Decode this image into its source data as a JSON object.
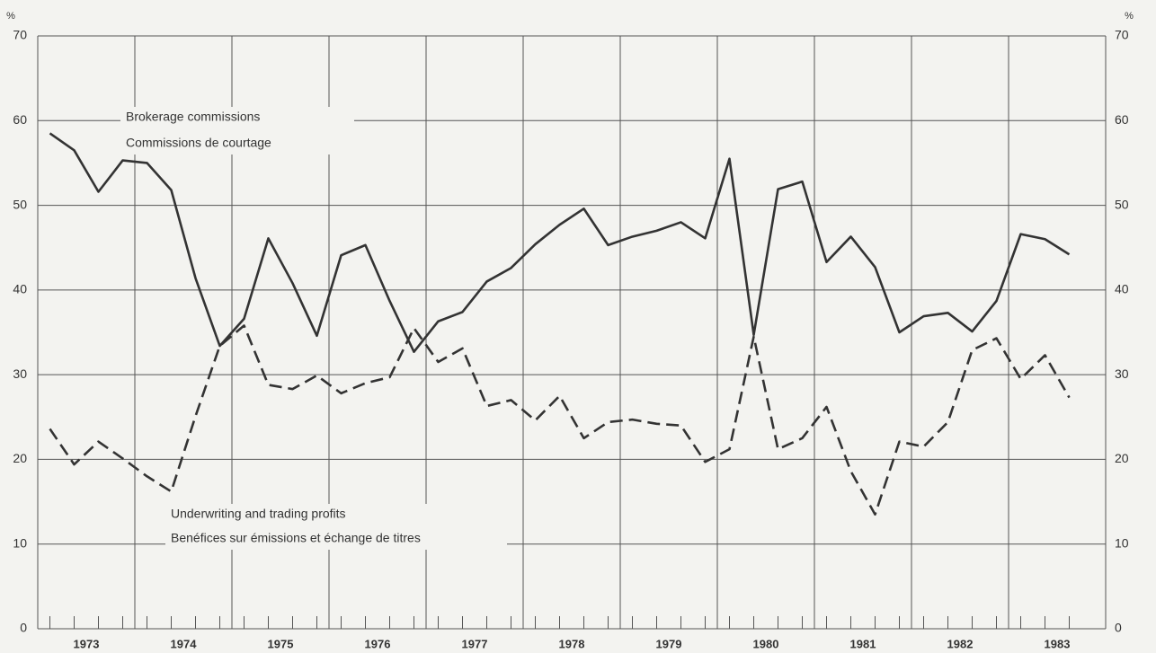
{
  "chart_data": {
    "type": "line",
    "ylabel": "%",
    "y2label": "%",
    "x": [
      1973.125,
      1973.375,
      1973.625,
      1973.875,
      1974.125,
      1974.375,
      1974.625,
      1974.875,
      1975.125,
      1975.375,
      1975.625,
      1975.875,
      1976.125,
      1976.375,
      1976.625,
      1976.875,
      1977.125,
      1977.375,
      1977.625,
      1977.875,
      1978.125,
      1978.375,
      1978.625,
      1978.875,
      1979.125,
      1979.375,
      1979.625,
      1979.875,
      1980.125,
      1980.375,
      1980.625,
      1980.875,
      1981.125,
      1981.375,
      1981.625,
      1981.875,
      1982.125,
      1982.375,
      1982.625,
      1982.875,
      1983.125,
      1983.375,
      1983.625
    ],
    "series": [
      {
        "name": "Brokerage commissions",
        "name_fr": "Commissions de courtage",
        "color": "#333333",
        "dash": false,
        "values": [
          58.5,
          56.5,
          51.6,
          55.3,
          55,
          51.8,
          41.4,
          33.4,
          36.6,
          46.1,
          40.8,
          34.6,
          44.1,
          45.3,
          38.7,
          32.7,
          36.3,
          37.4,
          41,
          42.6,
          45.4,
          47.7,
          49.6,
          45.3,
          46.3,
          47,
          48,
          46.1,
          55.5,
          34.7,
          51.9,
          52.8,
          43.3,
          46.3,
          42.7,
          35,
          36.9,
          37.3,
          35.1,
          38.7,
          46.6,
          46,
          44.2
        ]
      },
      {
        "name": "Underwriting and trading profits",
        "name_fr": "Benéfices sur émissions et échange de titres",
        "color": "#333333",
        "dash": true,
        "values": [
          23.6,
          19.4,
          22.1,
          20.1,
          18,
          16.2,
          25.1,
          33.4,
          35.8,
          28.8,
          28.3,
          29.9,
          27.8,
          29,
          29.7,
          35.5,
          31.5,
          33.1,
          26.3,
          27,
          24.6,
          27.5,
          22.5,
          24.4,
          24.7,
          24.2,
          24,
          19.7,
          21.2,
          34.5,
          21.2,
          22.5,
          26.2,
          18.6,
          13.5,
          22.1,
          21.5,
          24.4,
          32.9,
          34.3,
          29.5,
          32.3,
          27.3
        ]
      }
    ],
    "xlim": [
      1973,
      1984
    ],
    "xticks": [
      {
        "value": 1973.5,
        "label": "1973"
      },
      {
        "value": 1974.5,
        "label": "1974"
      },
      {
        "value": 1975.5,
        "label": "1975"
      },
      {
        "value": 1976.5,
        "label": "1976"
      },
      {
        "value": 1977.5,
        "label": "1977"
      },
      {
        "value": 1978.5,
        "label": "1978"
      },
      {
        "value": 1979.5,
        "label": "1979"
      },
      {
        "value": 1980.5,
        "label": "1980"
      },
      {
        "value": 1981.5,
        "label": "1981"
      },
      {
        "value": 1982.5,
        "label": "1982"
      },
      {
        "value": 1983.5,
        "label": "1983"
      }
    ],
    "ylim": [
      0,
      70
    ],
    "yticks": [
      0,
      10,
      20,
      30,
      40,
      50,
      60,
      70
    ],
    "y2lim": [
      0,
      70
    ],
    "y2ticks": [
      0,
      10,
      20,
      30,
      40,
      50,
      60,
      70
    ],
    "grid": true
  }
}
